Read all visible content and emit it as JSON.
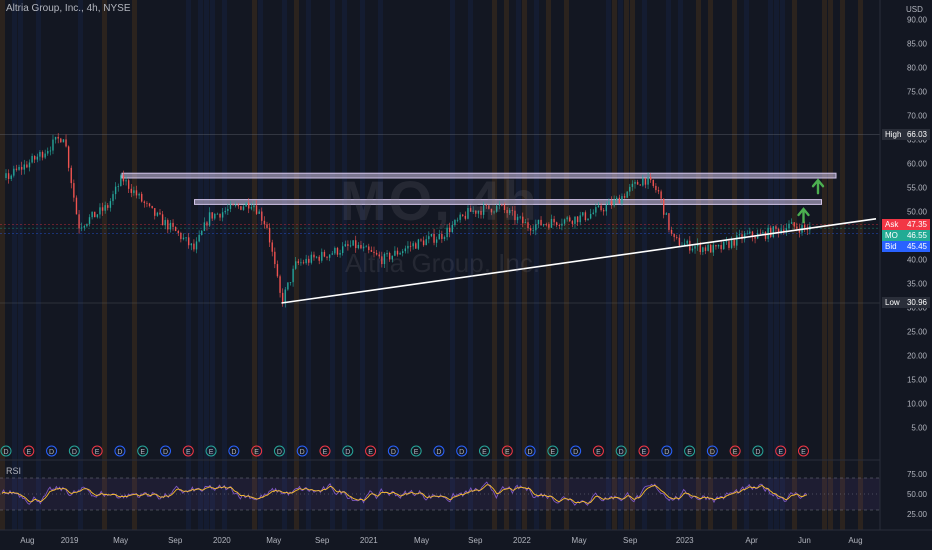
{
  "header": {
    "title": "Altria Group, Inc., 4h, NYSE"
  },
  "watermark": {
    "symbol": "MO, 4h",
    "name": "Altria Group, Inc."
  },
  "rsi": {
    "label": "RSI"
  },
  "price_axis": {
    "currency": "USD",
    "ticks": [
      "90.00",
      "85.00",
      "80.00",
      "75.00",
      "70.00",
      "65.00",
      "60.00",
      "55.00",
      "50.00",
      "45.00",
      "40.00",
      "35.00",
      "30.00",
      "25.00",
      "20.00",
      "15.00",
      "10.00",
      "5.00"
    ],
    "rsi_ticks": [
      "75.00",
      "50.00",
      "25.00"
    ]
  },
  "markers": {
    "high": {
      "label": "High",
      "value": "66.03",
      "color": "#2a2e39"
    },
    "ask": {
      "label": "Ask",
      "value": "47.35",
      "color": "#f23645"
    },
    "last": {
      "label": "MO",
      "value": "46.55",
      "color": "#22ab94"
    },
    "bid": {
      "label": "Bid",
      "value": "45.45",
      "color": "#2962ff"
    },
    "low": {
      "label": "Low",
      "value": "30.96",
      "color": "#2a2e39"
    }
  },
  "time_axis": {
    "labels": [
      "Aug",
      "2019",
      "May",
      "Sep",
      "2020",
      "May",
      "Sep",
      "2021",
      "May",
      "Sep",
      "2022",
      "May",
      "Sep",
      "2023",
      "Apr",
      "Jun",
      "Aug"
    ]
  },
  "colors": {
    "background": "#131722",
    "candle_up": "#26a69a",
    "candle_down": "#ef5350",
    "zone": "#d1c4e9",
    "trendline": "#ffffff",
    "arrow": "#4caf50",
    "rsi_line": "#7e57c2",
    "rsi_signal": "#fbc02d"
  },
  "events": [
    "D",
    "E",
    "D",
    "D",
    "E",
    "D",
    "E",
    "D",
    "E",
    "E",
    "D",
    "E",
    "D",
    "D",
    "E",
    "D",
    "E",
    "D",
    "E",
    "D",
    "D",
    "E",
    "E",
    "D",
    "E",
    "D",
    "E",
    "D",
    "E",
    "D",
    "E",
    "D",
    "E",
    "D",
    "E",
    "E"
  ],
  "chart_data": {
    "type": "line",
    "title": "Altria Group, Inc., 4h, NYSE",
    "xlabel": "",
    "ylabel": "",
    "ylim": [
      0,
      92
    ],
    "x_range": [
      "2018-08",
      "2023-08"
    ],
    "y_scale": "linear",
    "grid": false,
    "legend": "none",
    "price_path": {
      "dates": [
        "2018-08",
        "2018-10",
        "2018-12",
        "2019-01",
        "2019-03",
        "2019-04",
        "2019-06",
        "2019-08",
        "2019-09",
        "2019-10",
        "2019-12",
        "2020-01",
        "2020-02",
        "2020-03",
        "2020-04",
        "2020-06",
        "2020-08",
        "2020-10",
        "2020-12",
        "2021-02",
        "2021-04",
        "2021-06",
        "2021-08",
        "2021-10",
        "2021-12",
        "2022-02",
        "2022-04",
        "2022-05",
        "2022-06",
        "2022-07",
        "2022-09",
        "2022-11",
        "2022-12",
        "2023-01",
        "2023-02",
        "2023-03"
      ],
      "values": [
        57,
        61,
        66,
        47,
        51,
        57,
        50,
        45,
        42,
        49,
        51,
        52,
        47,
        31,
        39,
        41,
        43,
        40,
        43,
        45,
        50,
        51,
        47,
        48,
        49,
        52,
        57,
        54,
        44,
        43,
        42,
        45,
        45,
        46,
        47,
        46.55
      ]
    },
    "resistance_zones": [
      {
        "start": "2019-04",
        "end": "2023-08",
        "low": 57,
        "high": 58
      },
      {
        "start": "2019-09",
        "end": "2023-07",
        "low": 51.5,
        "high": 52.5
      }
    ],
    "trendline": {
      "start": [
        "2020-03",
        30.96
      ],
      "end": [
        "2023-08",
        48.5
      ]
    },
    "rsi": {
      "levels": [
        70,
        50,
        30
      ],
      "ylim": [
        15,
        85
      ]
    }
  }
}
